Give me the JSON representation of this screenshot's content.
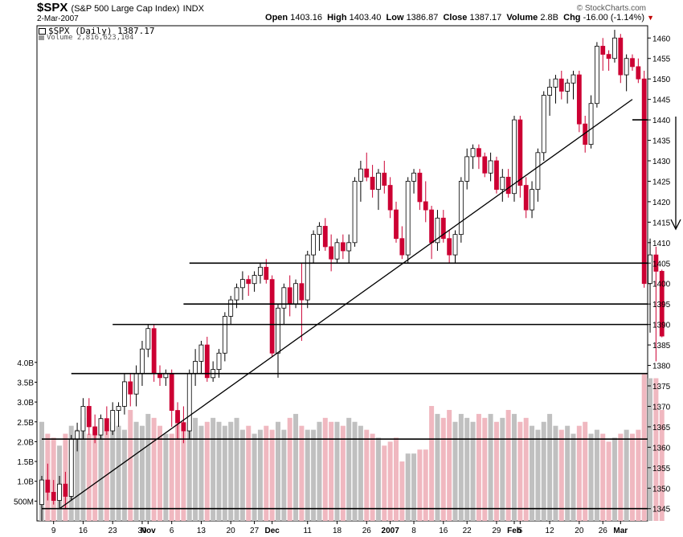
{
  "header": {
    "symbol": "$SPX",
    "name": "(S&P 500 Large Cap Index)",
    "exchange": "INDX",
    "date": "2-Mar-2007",
    "brand": "© StockCharts.com",
    "open_label": "Open",
    "open": "1403.16",
    "high_label": "High",
    "high": "1403.40",
    "low_label": "Low",
    "low": "1386.87",
    "close_label": "Close",
    "close": "1387.17",
    "volume_label": "Volume",
    "volume": "2.8B",
    "chg_label": "Chg",
    "chg": "-16.00 (-1.14%)"
  },
  "legend": {
    "price": "$SPX (Daily) 1387.17",
    "volume": "Volume 2,816,623,104"
  },
  "colors": {
    "up": "#ffffff",
    "down": "#cc0033",
    "vol_up": "#c0c0c0",
    "vol_down": "#f0b8c0",
    "grid": "#000000"
  },
  "chart_data": {
    "type": "candlestick",
    "title": "$SPX (Daily)",
    "y_ticks": [
      1345,
      1350,
      1355,
      1360,
      1365,
      1370,
      1375,
      1380,
      1385,
      1390,
      1395,
      1400,
      1405,
      1410,
      1415,
      1420,
      1425,
      1430,
      1435,
      1440,
      1445,
      1450,
      1455,
      1460
    ],
    "ylim": [
      1342,
      1463
    ],
    "vol_ticks": [
      "500M",
      "1.0B",
      "1.5B",
      "2.0B",
      "2.5B",
      "3.0B",
      "3.5B",
      "4.0B"
    ],
    "vol_tick_values": [
      0.5,
      1.0,
      1.5,
      2.0,
      2.5,
      3.0,
      3.5,
      4.0
    ],
    "x_tick_labels": [
      {
        "i": 2,
        "t": "9"
      },
      {
        "i": 7,
        "t": "16"
      },
      {
        "i": 12,
        "t": "23"
      },
      {
        "i": 17,
        "t": "30"
      },
      {
        "i": 18,
        "t": "Nov"
      },
      {
        "i": 22,
        "t": "6"
      },
      {
        "i": 27,
        "t": "13"
      },
      {
        "i": 32,
        "t": "20"
      },
      {
        "i": 36,
        "t": "27"
      },
      {
        "i": 39,
        "t": "Dec"
      },
      {
        "i": 45,
        "t": "11"
      },
      {
        "i": 50,
        "t": "18"
      },
      {
        "i": 55,
        "t": "26"
      },
      {
        "i": 59,
        "t": "2007"
      },
      {
        "i": 63,
        "t": "8"
      },
      {
        "i": 68,
        "t": "16"
      },
      {
        "i": 72,
        "t": "22"
      },
      {
        "i": 77,
        "t": "29"
      },
      {
        "i": 80,
        "t": "Feb"
      },
      {
        "i": 81,
        "t": "5"
      },
      {
        "i": 86,
        "t": "12"
      },
      {
        "i": 91,
        "t": "20"
      },
      {
        "i": 95,
        "t": "26"
      },
      {
        "i": 98,
        "t": "Mar"
      }
    ],
    "candles": [
      {
        "o": 1346,
        "h": 1353,
        "l": 1342,
        "c": 1352,
        "v": 2.5
      },
      {
        "o": 1352,
        "h": 1356,
        "l": 1347,
        "c": 1349,
        "v": 2.2
      },
      {
        "o": 1349,
        "h": 1352,
        "l": 1346,
        "c": 1347,
        "v": 2.1
      },
      {
        "o": 1347,
        "h": 1353,
        "l": 1345,
        "c": 1351,
        "v": 1.9
      },
      {
        "o": 1351,
        "h": 1354,
        "l": 1345,
        "c": 1348,
        "v": 2.2
      },
      {
        "o": 1348,
        "h": 1363,
        "l": 1347,
        "c": 1362,
        "v": 2.4
      },
      {
        "o": 1362,
        "h": 1366,
        "l": 1359,
        "c": 1364,
        "v": 2.3
      },
      {
        "o": 1364,
        "h": 1372,
        "l": 1362,
        "c": 1370,
        "v": 2.6
      },
      {
        "o": 1370,
        "h": 1372,
        "l": 1363,
        "c": 1365,
        "v": 2.2
      },
      {
        "o": 1365,
        "h": 1368,
        "l": 1361,
        "c": 1363,
        "v": 2.2
      },
      {
        "o": 1363,
        "h": 1368,
        "l": 1362,
        "c": 1367,
        "v": 2.4
      },
      {
        "o": 1367,
        "h": 1370,
        "l": 1363,
        "c": 1364,
        "v": 2.3
      },
      {
        "o": 1364,
        "h": 1371,
        "l": 1363,
        "c": 1369,
        "v": 2.5
      },
      {
        "o": 1369,
        "h": 1371,
        "l": 1365,
        "c": 1370,
        "v": 2.4
      },
      {
        "o": 1370,
        "h": 1378,
        "l": 1368,
        "c": 1376,
        "v": 2.3
      },
      {
        "o": 1376,
        "h": 1378,
        "l": 1370,
        "c": 1373,
        "v": 2.8
      },
      {
        "o": 1373,
        "h": 1380,
        "l": 1370,
        "c": 1378,
        "v": 2.5
      },
      {
        "o": 1378,
        "h": 1386,
        "l": 1375,
        "c": 1384,
        "v": 2.4
      },
      {
        "o": 1384,
        "h": 1390,
        "l": 1382,
        "c": 1389,
        "v": 2.7
      },
      {
        "o": 1389,
        "h": 1390,
        "l": 1376,
        "c": 1378,
        "v": 2.6
      },
      {
        "o": 1378,
        "h": 1380,
        "l": 1375,
        "c": 1377,
        "v": 2.4
      },
      {
        "o": 1377,
        "h": 1379,
        "l": 1375,
        "c": 1378,
        "v": 2.2
      },
      {
        "o": 1378,
        "h": 1379,
        "l": 1365,
        "c": 1369,
        "v": 2.2
      },
      {
        "o": 1369,
        "h": 1371,
        "l": 1362,
        "c": 1366,
        "v": 2.7
      },
      {
        "o": 1366,
        "h": 1370,
        "l": 1361,
        "c": 1364,
        "v": 2.5
      },
      {
        "o": 1364,
        "h": 1379,
        "l": 1362,
        "c": 1378,
        "v": 2.3
      },
      {
        "o": 1378,
        "h": 1384,
        "l": 1375,
        "c": 1381,
        "v": 2.6
      },
      {
        "o": 1381,
        "h": 1386,
        "l": 1378,
        "c": 1385,
        "v": 2.4
      },
      {
        "o": 1385,
        "h": 1387,
        "l": 1376,
        "c": 1377,
        "v": 2.5
      },
      {
        "o": 1377,
        "h": 1381,
        "l": 1376,
        "c": 1379,
        "v": 2.6
      },
      {
        "o": 1379,
        "h": 1384,
        "l": 1377,
        "c": 1383,
        "v": 2.5
      },
      {
        "o": 1383,
        "h": 1393,
        "l": 1381,
        "c": 1392,
        "v": 2.4
      },
      {
        "o": 1392,
        "h": 1397,
        "l": 1390,
        "c": 1396,
        "v": 2.5
      },
      {
        "o": 1396,
        "h": 1400,
        "l": 1394,
        "c": 1399,
        "v": 2.6
      },
      {
        "o": 1399,
        "h": 1403,
        "l": 1396,
        "c": 1401,
        "v": 2.3
      },
      {
        "o": 1401,
        "h": 1402,
        "l": 1397,
        "c": 1400,
        "v": 2.4
      },
      {
        "o": 1400,
        "h": 1403,
        "l": 1398,
        "c": 1402,
        "v": 2.2
      },
      {
        "o": 1402,
        "h": 1405,
        "l": 1400,
        "c": 1404,
        "v": 2.3
      },
      {
        "o": 1404,
        "h": 1406,
        "l": 1400,
        "c": 1401,
        "v": 2.4
      },
      {
        "o": 1401,
        "h": 1402,
        "l": 1382,
        "c": 1383,
        "v": 2.3
      },
      {
        "o": 1383,
        "h": 1395,
        "l": 1377,
        "c": 1394,
        "v": 2.5
      },
      {
        "o": 1394,
        "h": 1400,
        "l": 1390,
        "c": 1399,
        "v": 2.3
      },
      {
        "o": 1399,
        "h": 1402,
        "l": 1392,
        "c": 1395,
        "v": 2.6
      },
      {
        "o": 1395,
        "h": 1401,
        "l": 1394,
        "c": 1400,
        "v": 2.7
      },
      {
        "o": 1400,
        "h": 1405,
        "l": 1386,
        "c": 1396,
        "v": 2.4
      },
      {
        "o": 1396,
        "h": 1408,
        "l": 1394,
        "c": 1407,
        "v": 2.3
      },
      {
        "o": 1407,
        "h": 1413,
        "l": 1405,
        "c": 1412,
        "v": 2.3
      },
      {
        "o": 1412,
        "h": 1415,
        "l": 1408,
        "c": 1414,
        "v": 2.5
      },
      {
        "o": 1414,
        "h": 1416,
        "l": 1408,
        "c": 1409,
        "v": 2.6
      },
      {
        "o": 1409,
        "h": 1412,
        "l": 1403,
        "c": 1406,
        "v": 2.5
      },
      {
        "o": 1406,
        "h": 1411,
        "l": 1405,
        "c": 1410,
        "v": 2.5
      },
      {
        "o": 1410,
        "h": 1412,
        "l": 1406,
        "c": 1408,
        "v": 2.4
      },
      {
        "o": 1408,
        "h": 1412,
        "l": 1405,
        "c": 1410,
        "v": 2.6
      },
      {
        "o": 1410,
        "h": 1426,
        "l": 1409,
        "c": 1425,
        "v": 2.5
      },
      {
        "o": 1425,
        "h": 1430,
        "l": 1420,
        "c": 1428,
        "v": 2.4
      },
      {
        "o": 1428,
        "h": 1432,
        "l": 1425,
        "c": 1426,
        "v": 2.3
      },
      {
        "o": 1426,
        "h": 1429,
        "l": 1421,
        "c": 1423,
        "v": 2.2
      },
      {
        "o": 1423,
        "h": 1428,
        "l": 1418,
        "c": 1427,
        "v": 2.1
      },
      {
        "o": 1427,
        "h": 1430,
        "l": 1422,
        "c": 1424,
        "v": 1.9
      },
      {
        "o": 1424,
        "h": 1426,
        "l": 1416,
        "c": 1418,
        "v": 2.0
      },
      {
        "o": 1418,
        "h": 1420,
        "l": 1410,
        "c": 1411,
        "v": 2.1
      },
      {
        "o": 1411,
        "h": 1414,
        "l": 1406,
        "c": 1407,
        "v": 1.5
      },
      {
        "o": 1407,
        "h": 1426,
        "l": 1405,
        "c": 1425,
        "v": 1.7
      },
      {
        "o": 1425,
        "h": 1428,
        "l": 1422,
        "c": 1427,
        "v": 1.7
      },
      {
        "o": 1427,
        "h": 1428,
        "l": 1418,
        "c": 1420,
        "v": 1.8
      },
      {
        "o": 1420,
        "h": 1425,
        "l": 1415,
        "c": 1418,
        "v": 1.8
      },
      {
        "o": 1418,
        "h": 1419,
        "l": 1406,
        "c": 1410,
        "v": 2.9
      },
      {
        "o": 1410,
        "h": 1418,
        "l": 1408,
        "c": 1416,
        "v": 2.7
      },
      {
        "o": 1416,
        "h": 1418,
        "l": 1410,
        "c": 1411,
        "v": 2.6
      },
      {
        "o": 1411,
        "h": 1413,
        "l": 1405,
        "c": 1407,
        "v": 2.8
      },
      {
        "o": 1407,
        "h": 1413,
        "l": 1405,
        "c": 1412,
        "v": 2.5
      },
      {
        "o": 1412,
        "h": 1426,
        "l": 1410,
        "c": 1425,
        "v": 2.7
      },
      {
        "o": 1425,
        "h": 1433,
        "l": 1423,
        "c": 1431,
        "v": 2.6
      },
      {
        "o": 1431,
        "h": 1434,
        "l": 1428,
        "c": 1433,
        "v": 2.5
      },
      {
        "o": 1433,
        "h": 1434,
        "l": 1428,
        "c": 1431,
        "v": 2.7
      },
      {
        "o": 1431,
        "h": 1432,
        "l": 1426,
        "c": 1427,
        "v": 2.6
      },
      {
        "o": 1427,
        "h": 1432,
        "l": 1425,
        "c": 1430,
        "v": 2.7
      },
      {
        "o": 1430,
        "h": 1431,
        "l": 1422,
        "c": 1423,
        "v": 2.5
      },
      {
        "o": 1423,
        "h": 1428,
        "l": 1420,
        "c": 1426,
        "v": 2.6
      },
      {
        "o": 1426,
        "h": 1428,
        "l": 1421,
        "c": 1422,
        "v": 2.8
      },
      {
        "o": 1422,
        "h": 1441,
        "l": 1420,
        "c": 1440,
        "v": 2.7
      },
      {
        "o": 1440,
        "h": 1441,
        "l": 1421,
        "c": 1424,
        "v": 2.5
      },
      {
        "o": 1424,
        "h": 1426,
        "l": 1416,
        "c": 1418,
        "v": 2.6
      },
      {
        "o": 1418,
        "h": 1425,
        "l": 1416,
        "c": 1423,
        "v": 2.4
      },
      {
        "o": 1423,
        "h": 1433,
        "l": 1420,
        "c": 1432,
        "v": 2.3
      },
      {
        "o": 1432,
        "h": 1447,
        "l": 1430,
        "c": 1446,
        "v": 2.5
      },
      {
        "o": 1446,
        "h": 1450,
        "l": 1441,
        "c": 1448,
        "v": 2.7
      },
      {
        "o": 1448,
        "h": 1451,
        "l": 1444,
        "c": 1450,
        "v": 2.4
      },
      {
        "o": 1450,
        "h": 1452,
        "l": 1445,
        "c": 1447,
        "v": 2.3
      },
      {
        "o": 1447,
        "h": 1450,
        "l": 1444,
        "c": 1449,
        "v": 2.4
      },
      {
        "o": 1449,
        "h": 1452,
        "l": 1445,
        "c": 1451,
        "v": 2.2
      },
      {
        "o": 1451,
        "h": 1452,
        "l": 1437,
        "c": 1439,
        "v": 2.4
      },
      {
        "o": 1439,
        "h": 1441,
        "l": 1432,
        "c": 1434,
        "v": 2.5
      },
      {
        "o": 1434,
        "h": 1446,
        "l": 1433,
        "c": 1444,
        "v": 2.2
      },
      {
        "o": 1444,
        "h": 1459,
        "l": 1443,
        "c": 1458,
        "v": 2.3
      },
      {
        "o": 1458,
        "h": 1460,
        "l": 1452,
        "c": 1456,
        "v": 2.2
      },
      {
        "o": 1456,
        "h": 1457,
        "l": 1452,
        "c": 1455,
        "v": 2.0
      },
      {
        "o": 1455,
        "h": 1462,
        "l": 1454,
        "c": 1460,
        "v": 2.1
      },
      {
        "o": 1460,
        "h": 1461,
        "l": 1449,
        "c": 1451,
        "v": 2.2
      },
      {
        "o": 1451,
        "h": 1456,
        "l": 1447,
        "c": 1455,
        "v": 2.3
      },
      {
        "o": 1455,
        "h": 1456,
        "l": 1452,
        "c": 1453,
        "v": 2.2
      },
      {
        "o": 1453,
        "h": 1455,
        "l": 1449,
        "c": 1450,
        "v": 2.3
      },
      {
        "o": 1450,
        "h": 1452,
        "l": 1399,
        "c": 1400,
        "v": 3.7
      },
      {
        "o": 1400,
        "h": 1411,
        "l": 1388,
        "c": 1407,
        "v": 3.6
      },
      {
        "o": 1407,
        "h": 1409,
        "l": 1381,
        "c": 1403,
        "v": 3.6
      },
      {
        "o": 1403,
        "h": 1403.4,
        "l": 1386.87,
        "c": 1387.17,
        "v": 2.8
      }
    ],
    "lines": [
      {
        "x1": 12,
        "y1": 1390,
        "x2": 115,
        "y2": 1390
      },
      {
        "x1": 25,
        "y1": 1405,
        "x2": 115,
        "y2": 1405
      },
      {
        "x1": 24,
        "y1": 1395,
        "x2": 115,
        "y2": 1395
      },
      {
        "x1": 5,
        "y1": 1378,
        "x2": 115,
        "y2": 1378
      },
      {
        "x1": 100,
        "y1": 1440,
        "x2": 115,
        "y2": 1440
      },
      {
        "x1": 0,
        "y1": 1362,
        "x2": 115,
        "y2": 1362
      },
      {
        "x1": 0,
        "y1": 1345,
        "x2": 115,
        "y2": 1345
      },
      {
        "x1": 3,
        "y1": 1345,
        "x2": 100,
        "y2": 1445
      }
    ]
  }
}
